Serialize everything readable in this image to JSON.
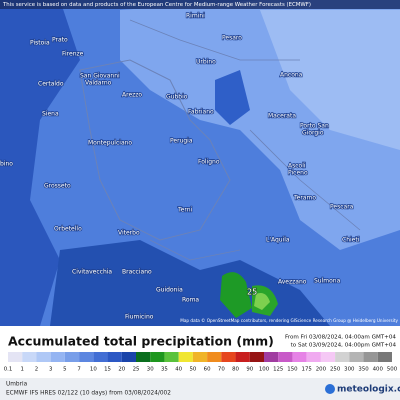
{
  "header": {
    "notice": "This service is based on data and products of the European Centre for Medium-range Weather Forecasts (ECMWF)"
  },
  "map": {
    "places": [
      "Rimini",
      "Pesaro",
      "Prato",
      "Pistoia",
      "Firenze",
      "Urbino",
      "Ancona",
      "San Giovanni",
      "Valdarno",
      "Certaldo",
      "Arezzo",
      "Gubbio",
      "Siena",
      "Fabriano",
      "Macerata",
      "Porto San",
      "Giorgio",
      "Montepulciano",
      "Perugia",
      "Foligno",
      "Ascoli",
      "Piceno",
      "bino",
      "Grosseto",
      "Teramo",
      "Pescara",
      "Terni",
      "Orbetello",
      "Viterbo",
      "L'Aquila",
      "Chieti",
      "Sulmona",
      "Civitavecchia",
      "Bracciano",
      "Avezzano",
      "Guidonia",
      "Roma",
      "Fiumicino"
    ],
    "value_label": "25",
    "attribution": "Map data © OpenStreetMap contributors, rendering GIScience Research Group @ Heidelberg University"
  },
  "legend": {
    "title": "Accumulated total precipitation (mm)",
    "from": "From Fri 03/08/2024, 04:00am GMT+04",
    "to": "to Sat 03/09/2024, 04:00pm GMT+04",
    "scale": [
      0.1,
      1,
      2,
      3,
      5,
      7,
      10,
      15,
      20,
      25,
      30,
      35,
      40,
      50,
      60,
      70,
      80,
      90,
      100,
      125,
      150,
      175,
      200,
      250,
      300,
      350,
      400,
      500
    ],
    "colors": [
      "#e4e4f4",
      "#c8d8f8",
      "#afc8f6",
      "#94b4f2",
      "#789ee9",
      "#5c86e0",
      "#426ed4",
      "#2c58c4",
      "#1a44aa",
      "#0a6e1e",
      "#1e961e",
      "#5ac23c",
      "#f0e632",
      "#f0b428",
      "#f08c1e",
      "#e6461e",
      "#c81e1e",
      "#961414",
      "#a03ca0",
      "#c85ac8",
      "#e682e6",
      "#f0aaf0",
      "#f5c8f5",
      "#d2d2d2",
      "#b4b4b4",
      "#969696",
      "#787878"
    ]
  },
  "footer": {
    "region": "Umbria",
    "model": "ECMWF IFS HRES 02/122 (10 days) from 03/08/2024/002",
    "site": "meteologix.com"
  }
}
